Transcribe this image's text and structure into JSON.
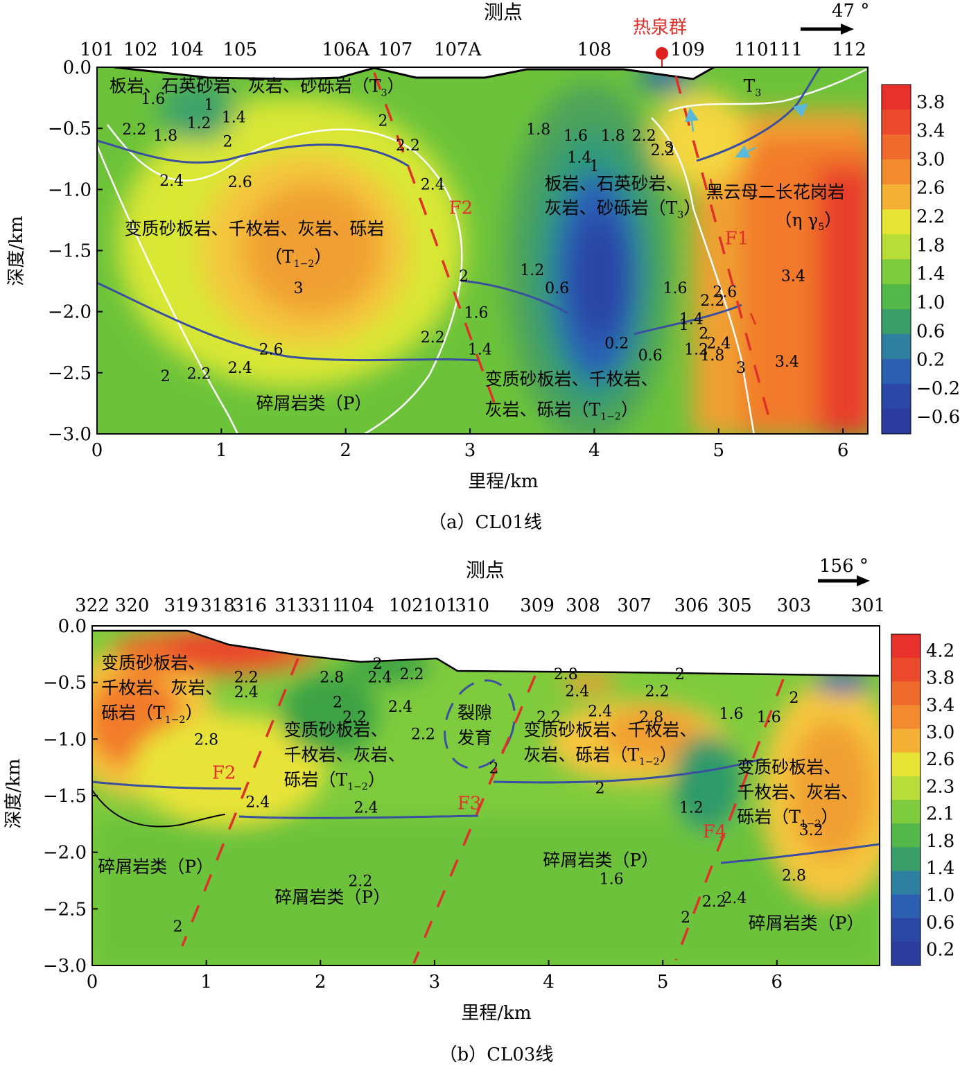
{
  "colors": {
    "fault": "#e0302a",
    "boundary": "#3a4fa0",
    "white_contour": "#ffffff",
    "hotspring": "#e02020"
  },
  "chart_data": [
    {
      "type": "heatmap",
      "caption": "（a）CL01线",
      "top_title": "测点",
      "xlabel": "里程/km",
      "ylabel": "深度/km",
      "xlim": [
        0,
        6.2
      ],
      "ylim": [
        -3.0,
        0.0
      ],
      "x_ticks": [
        "0",
        "1",
        "2",
        "3",
        "4",
        "5",
        "6"
      ],
      "y_ticks": [
        "0.0",
        "−0.5",
        "−1.0",
        "−1.5",
        "−2.0",
        "−2.5",
        "−3.0"
      ],
      "direction": "47 °",
      "stations": [
        {
          "label": "101",
          "x": 0.0
        },
        {
          "label": "102",
          "x": 0.35
        },
        {
          "label": "104",
          "x": 0.72
        },
        {
          "label": "105",
          "x": 1.15
        },
        {
          "label": "106A",
          "x": 2.0
        },
        {
          "label": "107",
          "x": 2.4
        },
        {
          "label": "107A",
          "x": 2.9
        },
        {
          "label": "108",
          "x": 4.0
        },
        {
          "label": "109",
          "x": 4.75
        },
        {
          "label": "110111",
          "x": 5.4
        },
        {
          "label": "112",
          "x": 6.05
        }
      ],
      "hotspring": {
        "label": "热泉群",
        "x": 4.55
      },
      "colorbar": [
        "3.8",
        "3.4",
        "3.0",
        "2.6",
        "2.2",
        "1.8",
        "1.4",
        "1.0",
        "0.6",
        "0.2",
        "−0.2",
        "−0.6"
      ],
      "geology": [
        {
          "text": "板岩、石英砂岩、灰岩、砂砾岩（T",
          "sub": "3",
          "tail": "）",
          "x": 0.1,
          "y": -0.2
        },
        {
          "text": "T",
          "sub": "3",
          "tail": "",
          "x": 5.2,
          "y": -0.2
        },
        {
          "text": "板岩、石英砂岩、",
          "sub": "",
          "tail": "",
          "x": 3.6,
          "y": -1.0
        },
        {
          "text": "灰岩、砂砾岩（T",
          "sub": "3",
          "tail": "）",
          "x": 3.6,
          "y": -1.2
        },
        {
          "text": "黑云母二长花岗岩",
          "sub": "",
          "tail": "",
          "x": 4.9,
          "y": -1.07
        },
        {
          "text": "（η γ",
          "sub": "5",
          "tail": "）",
          "x": 5.45,
          "y": -1.3
        },
        {
          "text": "变质砂板岩、千枚岩、灰岩、砾岩",
          "sub": "",
          "tail": "",
          "x": 0.22,
          "y": -1.37
        },
        {
          "text": "（T",
          "sub": "1−2",
          "tail": "）",
          "x": 1.35,
          "y": -1.6
        },
        {
          "text": "碎屑岩类（P）",
          "sub": "",
          "tail": "",
          "x": 1.28,
          "y": -2.8
        },
        {
          "text": "变质砂板岩、千枚岩、",
          "sub": "",
          "tail": "",
          "x": 3.12,
          "y": -2.6
        },
        {
          "text": "灰岩、砾岩（T",
          "sub": "1−2",
          "tail": "）",
          "x": 3.12,
          "y": -2.85
        }
      ],
      "faults": [
        {
          "label": "F1",
          "x": 5.05,
          "y": -1.45
        },
        {
          "label": "F2",
          "x": 2.83,
          "y": -1.2
        }
      ],
      "contour_labels": [
        {
          "t": "1",
          "x": 0.9,
          "y": -0.35
        },
        {
          "t": "1.2",
          "x": 0.82,
          "y": -0.5
        },
        {
          "t": "1.4",
          "x": 1.1,
          "y": -0.45
        },
        {
          "t": "1.6",
          "x": 0.45,
          "y": -0.3
        },
        {
          "t": "1.8",
          "x": 0.55,
          "y": -0.6
        },
        {
          "t": "2.2",
          "x": 0.3,
          "y": -0.55
        },
        {
          "t": "2",
          "x": 1.05,
          "y": -0.65
        },
        {
          "t": "2.4",
          "x": 0.6,
          "y": -0.97
        },
        {
          "t": "2.6",
          "x": 1.15,
          "y": -0.98
        },
        {
          "t": "2",
          "x": 2.3,
          "y": -0.48
        },
        {
          "t": "2.2",
          "x": 2.5,
          "y": -0.68
        },
        {
          "t": "2.4",
          "x": 2.7,
          "y": -1.0
        },
        {
          "t": "3",
          "x": 1.62,
          "y": -1.85
        },
        {
          "t": "2",
          "x": 2.95,
          "y": -1.75
        },
        {
          "t": "1.6",
          "x": 3.05,
          "y": -2.05
        },
        {
          "t": "1.4",
          "x": 3.08,
          "y": -2.35
        },
        {
          "t": "2.2",
          "x": 2.7,
          "y": -2.25
        },
        {
          "t": "2.6",
          "x": 1.4,
          "y": -2.35
        },
        {
          "t": "2.4",
          "x": 1.15,
          "y": -2.5
        },
        {
          "t": "2.2",
          "x": 0.82,
          "y": -2.55
        },
        {
          "t": "2",
          "x": 0.55,
          "y": -2.57
        },
        {
          "t": "1.8",
          "x": 3.55,
          "y": -0.55
        },
        {
          "t": "1.6",
          "x": 3.85,
          "y": -0.6
        },
        {
          "t": "1.8",
          "x": 4.15,
          "y": -0.6
        },
        {
          "t": "1.4",
          "x": 3.88,
          "y": -0.78
        },
        {
          "t": "1",
          "x": 4.0,
          "y": -0.85
        },
        {
          "t": "2.2",
          "x": 4.4,
          "y": -0.6
        },
        {
          "t": "2.2",
          "x": 4.55,
          "y": -0.72
        },
        {
          "t": "1.2",
          "x": 3.5,
          "y": -1.7
        },
        {
          "t": "0.6",
          "x": 3.7,
          "y": -1.85
        },
        {
          "t": "0.2",
          "x": 4.18,
          "y": -2.3
        },
        {
          "t": "0.6",
          "x": 4.45,
          "y": -2.4
        },
        {
          "t": "1",
          "x": 4.72,
          "y": -2.15
        },
        {
          "t": "1.2",
          "x": 4.82,
          "y": -2.35
        },
        {
          "t": "1.4",
          "x": 4.78,
          "y": -2.1
        },
        {
          "t": "1.6",
          "x": 4.65,
          "y": -1.85
        },
        {
          "t": "1.8",
          "x": 4.95,
          "y": -2.4
        },
        {
          "t": "2",
          "x": 4.88,
          "y": -2.22
        },
        {
          "t": "2.2",
          "x": 4.95,
          "y": -1.95
        },
        {
          "t": "2.4",
          "x": 5.0,
          "y": -2.3
        },
        {
          "t": "2.6",
          "x": 5.05,
          "y": -1.88
        },
        {
          "t": "3",
          "x": 5.18,
          "y": -2.5
        },
        {
          "t": "3",
          "x": 4.6,
          "y": -0.7
        },
        {
          "t": "3.4",
          "x": 5.6,
          "y": -1.75
        },
        {
          "t": "3.4",
          "x": 5.55,
          "y": -2.45
        }
      ]
    },
    {
      "type": "heatmap",
      "caption": "（b）CL03线",
      "top_title": "测点",
      "xlabel": "里程/km",
      "ylabel": "深度/km",
      "xlim": [
        0,
        6.9
      ],
      "ylim": [
        -3.0,
        0.0
      ],
      "x_ticks": [
        "0",
        "1",
        "2",
        "3",
        "4",
        "5",
        "6"
      ],
      "y_ticks": [
        "0.0",
        "−0.5",
        "−1.0",
        "−1.5",
        "−2.0",
        "−2.5",
        "−3.0"
      ],
      "direction": "156 °",
      "stations": [
        {
          "label": "322",
          "x": 0.0
        },
        {
          "label": "320",
          "x": 0.35
        },
        {
          "label": "319",
          "x": 0.78
        },
        {
          "label": "318",
          "x": 1.1
        },
        {
          "label": "316",
          "x": 1.38
        },
        {
          "label": "313",
          "x": 1.75
        },
        {
          "label": "311",
          "x": 2.05
        },
        {
          "label": "104",
          "x": 2.32
        },
        {
          "label": "102",
          "x": 2.75
        },
        {
          "label": "101",
          "x": 3.05
        },
        {
          "label": "310",
          "x": 3.33
        },
        {
          "label": "309",
          "x": 3.9
        },
        {
          "label": "308",
          "x": 4.3
        },
        {
          "label": "307",
          "x": 4.75
        },
        {
          "label": "306",
          "x": 5.25
        },
        {
          "label": "305",
          "x": 5.63
        },
        {
          "label": "303",
          "x": 6.15
        },
        {
          "label": "301",
          "x": 6.8
        }
      ],
      "colorbar": [
        "4.2",
        "3.8",
        "3.4",
        "3.0",
        "2.6",
        "2.3",
        "2.1",
        "1.8",
        "1.4",
        "1.0",
        "0.6",
        "0.2"
      ],
      "geology": [
        {
          "text": "变质砂板岩、",
          "sub": "",
          "tail": "",
          "x": 0.08,
          "y": -0.38
        },
        {
          "text": "千枚岩、灰岩、",
          "sub": "",
          "tail": "",
          "x": 0.08,
          "y": -0.6
        },
        {
          "text": "砾岩（T",
          "sub": "1−2",
          "tail": "）",
          "x": 0.08,
          "y": -0.82
        },
        {
          "text": "变质砂板岩、",
          "sub": "",
          "tail": "",
          "x": 1.68,
          "y": -0.97
        },
        {
          "text": "千枚岩、灰岩、",
          "sub": "",
          "tail": "",
          "x": 1.68,
          "y": -1.19
        },
        {
          "text": "砾岩（T",
          "sub": "1−2",
          "tail": "）",
          "x": 1.68,
          "y": -1.41
        },
        {
          "text": "裂隙",
          "sub": "",
          "tail": "",
          "x": 3.2,
          "y": -0.82
        },
        {
          "text": "发育",
          "sub": "",
          "tail": "",
          "x": 3.2,
          "y": -1.04
        },
        {
          "text": "变质砂板岩、千枚岩、",
          "sub": "",
          "tail": "",
          "x": 3.78,
          "y": -0.97
        },
        {
          "text": "灰岩、砾岩（T",
          "sub": "1−2",
          "tail": "）",
          "x": 3.78,
          "y": -1.19
        },
        {
          "text": "变质砂板岩、",
          "sub": "",
          "tail": "",
          "x": 5.65,
          "y": -1.3
        },
        {
          "text": "千枚岩、灰岩、",
          "sub": "",
          "tail": "",
          "x": 5.65,
          "y": -1.52
        },
        {
          "text": "砾岩（T",
          "sub": "1−2",
          "tail": "）",
          "x": 5.65,
          "y": -1.74
        },
        {
          "text": "碎屑岩类（P）",
          "sub": "",
          "tail": "",
          "x": 0.05,
          "y": -2.18
        },
        {
          "text": "碎屑岩类（P）",
          "sub": "",
          "tail": "",
          "x": 1.6,
          "y": -2.45
        },
        {
          "text": "碎屑岩类（P）",
          "sub": "",
          "tail": "",
          "x": 3.95,
          "y": -2.12
        },
        {
          "text": "碎屑岩类（P）",
          "sub": "",
          "tail": "",
          "x": 5.75,
          "y": -2.68
        }
      ],
      "faults": [
        {
          "label": "F2",
          "x": 1.05,
          "y": -1.35
        },
        {
          "label": "F3",
          "x": 3.2,
          "y": -1.62
        },
        {
          "label": "F4",
          "x": 5.35,
          "y": -1.87
        }
      ],
      "contour_labels": [
        {
          "t": "2.2",
          "x": 1.35,
          "y": -0.5
        },
        {
          "t": "2.4",
          "x": 1.35,
          "y": -0.63
        },
        {
          "t": "2.8",
          "x": 1.0,
          "y": -1.05
        },
        {
          "t": "2.8",
          "x": 2.1,
          "y": -0.5
        },
        {
          "t": "2.4",
          "x": 2.52,
          "y": -0.5
        },
        {
          "t": "2.2",
          "x": 2.8,
          "y": -0.47
        },
        {
          "t": "2",
          "x": 2.5,
          "y": -0.38
        },
        {
          "t": "2",
          "x": 2.15,
          "y": -0.72
        },
        {
          "t": "2.4",
          "x": 2.7,
          "y": -0.76
        },
        {
          "t": "2.2",
          "x": 2.3,
          "y": -0.85
        },
        {
          "t": "2.2",
          "x": 2.9,
          "y": -1.0
        },
        {
          "t": "2.4",
          "x": 2.4,
          "y": -1.65
        },
        {
          "t": "2",
          "x": 3.52,
          "y": -1.3
        },
        {
          "t": "2.8",
          "x": 4.15,
          "y": -0.47
        },
        {
          "t": "2.4",
          "x": 4.25,
          "y": -0.62
        },
        {
          "t": "2.2",
          "x": 4.0,
          "y": -0.85
        },
        {
          "t": "2.4",
          "x": 4.45,
          "y": -0.8
        },
        {
          "t": "2.2",
          "x": 4.95,
          "y": -0.62
        },
        {
          "t": "2.8",
          "x": 4.9,
          "y": -0.85
        },
        {
          "t": "2",
          "x": 5.15,
          "y": -0.47
        },
        {
          "t": "1.6",
          "x": 5.6,
          "y": -0.82
        },
        {
          "t": "1.6",
          "x": 5.93,
          "y": -0.85
        },
        {
          "t": "2",
          "x": 6.15,
          "y": -0.68
        },
        {
          "t": "1.2",
          "x": 5.25,
          "y": -1.65
        },
        {
          "t": "3.2",
          "x": 6.3,
          "y": -1.85
        },
        {
          "t": "2.8",
          "x": 6.15,
          "y": -2.25
        },
        {
          "t": "2.4",
          "x": 5.63,
          "y": -2.45
        },
        {
          "t": "2.2",
          "x": 5.45,
          "y": -2.48
        },
        {
          "t": "2",
          "x": 5.2,
          "y": -2.62
        },
        {
          "t": "2.4",
          "x": 1.45,
          "y": -1.6
        },
        {
          "t": "2.2",
          "x": 2.35,
          "y": -2.3
        },
        {
          "t": "2",
          "x": 0.75,
          "y": -2.7
        },
        {
          "t": "2",
          "x": 4.45,
          "y": -1.48
        },
        {
          "t": "1.6",
          "x": 4.55,
          "y": -2.28
        }
      ]
    }
  ]
}
